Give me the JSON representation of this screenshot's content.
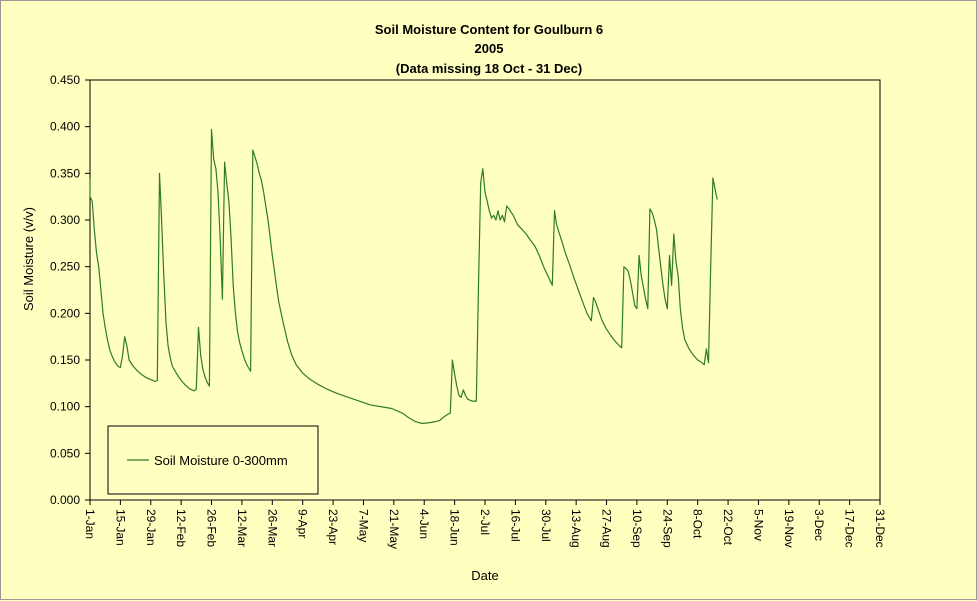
{
  "chart_data": {
    "type": "line",
    "title": "Soil Moisture Content for Goulburn 6",
    "subtitle": "2005",
    "note": "(Data missing 18 Oct - 31 Dec)",
    "xlabel": "Date",
    "ylabel": "Soil Moisture (v/v)",
    "ylim": [
      0,
      0.45
    ],
    "xlim_days": [
      0,
      364
    ],
    "x_tick_labels": [
      "1-Jan",
      "15-Jan",
      "29-Jan",
      "12-Feb",
      "26-Feb",
      "12-Mar",
      "26-Mar",
      "9-Apr",
      "23-Apr",
      "7-May",
      "21-May",
      "4-Jun",
      "18-Jun",
      "2-Jul",
      "16-Jul",
      "30-Jul",
      "13-Aug",
      "27-Aug",
      "10-Sep",
      "24-Sep",
      "8-Oct",
      "22-Oct",
      "5-Nov",
      "19-Nov",
      "3-Dec",
      "17-Dec",
      "31-Dec"
    ],
    "y_tick_labels": [
      "0.000",
      "0.050",
      "0.100",
      "0.150",
      "0.200",
      "0.250",
      "0.300",
      "0.350",
      "0.400",
      "0.450"
    ],
    "legend": {
      "position": "bottom-left",
      "label": "Soil Moisture 0-300mm"
    },
    "grid": false,
    "colors": {
      "background": "#ffffc0",
      "series": "#2e7d1e",
      "axis": "#000000"
    },
    "series": [
      {
        "name": "Soil Moisture 0-300mm",
        "points": [
          [
            "1-Jan",
            0.345
          ],
          [
            "1-Jan",
            0.325
          ],
          [
            "2-Jan",
            0.32
          ],
          [
            "3-Jan",
            0.29
          ],
          [
            "4-Jan",
            0.265
          ],
          [
            "5-Jan",
            0.25
          ],
          [
            "6-Jan",
            0.225
          ],
          [
            "7-Jan",
            0.2
          ],
          [
            "8-Jan",
            0.185
          ],
          [
            "9-Jan",
            0.172
          ],
          [
            "10-Jan",
            0.162
          ],
          [
            "11-Jan",
            0.155
          ],
          [
            "12-Jan",
            0.15
          ],
          [
            "13-Jan",
            0.146
          ],
          [
            "14-Jan",
            0.143
          ],
          [
            "15-Jan",
            0.142
          ],
          [
            "16-Jan",
            0.155
          ],
          [
            "17-Jan",
            0.175
          ],
          [
            "18-Jan",
            0.165
          ],
          [
            "19-Jan",
            0.15
          ],
          [
            "21-Jan",
            0.143
          ],
          [
            "23-Jan",
            0.138
          ],
          [
            "25-Jan",
            0.134
          ],
          [
            "27-Jan",
            0.131
          ],
          [
            "29-Jan",
            0.129
          ],
          [
            "31-Jan",
            0.127
          ],
          [
            "1-Feb",
            0.128
          ],
          [
            "2-Feb",
            0.35
          ],
          [
            "3-Feb",
            0.3
          ],
          [
            "4-Feb",
            0.24
          ],
          [
            "5-Feb",
            0.19
          ],
          [
            "6-Feb",
            0.165
          ],
          [
            "7-Feb",
            0.152
          ],
          [
            "8-Feb",
            0.143
          ],
          [
            "10-Feb",
            0.135
          ],
          [
            "12-Feb",
            0.128
          ],
          [
            "14-Feb",
            0.123
          ],
          [
            "16-Feb",
            0.119
          ],
          [
            "18-Feb",
            0.117
          ],
          [
            "19-Feb",
            0.119
          ],
          [
            "20-Feb",
            0.185
          ],
          [
            "21-Feb",
            0.155
          ],
          [
            "22-Feb",
            0.14
          ],
          [
            "23-Feb",
            0.132
          ],
          [
            "24-Feb",
            0.126
          ],
          [
            "25-Feb",
            0.122
          ],
          [
            "26-Feb",
            0.397
          ],
          [
            "27-Feb",
            0.365
          ],
          [
            "28-Feb",
            0.355
          ],
          [
            "1-Mar",
            0.33
          ],
          [
            "2-Mar",
            0.28
          ],
          [
            "3-Mar",
            0.215
          ],
          [
            "4-Mar",
            0.362
          ],
          [
            "5-Mar",
            0.34
          ],
          [
            "6-Mar",
            0.32
          ],
          [
            "7-Mar",
            0.28
          ],
          [
            "8-Mar",
            0.23
          ],
          [
            "9-Mar",
            0.2
          ],
          [
            "10-Mar",
            0.18
          ],
          [
            "11-Mar",
            0.168
          ],
          [
            "12-Mar",
            0.16
          ],
          [
            "13-Mar",
            0.152
          ],
          [
            "14-Mar",
            0.146
          ],
          [
            "15-Mar",
            0.142
          ],
          [
            "16-Mar",
            0.138
          ],
          [
            "17-Mar",
            0.375
          ],
          [
            "18-Mar",
            0.368
          ],
          [
            "19-Mar",
            0.36
          ],
          [
            "20-Mar",
            0.35
          ],
          [
            "21-Mar",
            0.342
          ],
          [
            "22-Mar",
            0.33
          ],
          [
            "23-Mar",
            0.315
          ],
          [
            "24-Mar",
            0.3
          ],
          [
            "25-Mar",
            0.282
          ],
          [
            "26-Mar",
            0.262
          ],
          [
            "27-Mar",
            0.245
          ],
          [
            "28-Mar",
            0.228
          ],
          [
            "29-Mar",
            0.212
          ],
          [
            "31-Mar",
            0.19
          ],
          [
            "2-Apr",
            0.17
          ],
          [
            "4-Apr",
            0.155
          ],
          [
            "6-Apr",
            0.145
          ],
          [
            "9-Apr",
            0.136
          ],
          [
            "12-Apr",
            0.13
          ],
          [
            "16-Apr",
            0.124
          ],
          [
            "20-Apr",
            0.119
          ],
          [
            "25-Apr",
            0.114
          ],
          [
            "30-Apr",
            0.11
          ],
          [
            "5-May",
            0.106
          ],
          [
            "10-May",
            0.102
          ],
          [
            "15-May",
            0.1
          ],
          [
            "20-May",
            0.098
          ],
          [
            "25-May",
            0.093
          ],
          [
            "28-May",
            0.088
          ],
          [
            "31-May",
            0.084
          ],
          [
            "3-Jun",
            0.082
          ],
          [
            "7-Jun",
            0.083
          ],
          [
            "11-Jun",
            0.085
          ],
          [
            "13-Jun",
            0.089
          ],
          [
            "15-Jun",
            0.092
          ],
          [
            "16-Jun",
            0.093
          ],
          [
            "17-Jun",
            0.15
          ],
          [
            "18-Jun",
            0.135
          ],
          [
            "19-Jun",
            0.122
          ],
          [
            "20-Jun",
            0.112
          ],
          [
            "21-Jun",
            0.11
          ],
          [
            "22-Jun",
            0.118
          ],
          [
            "23-Jun",
            0.112
          ],
          [
            "24-Jun",
            0.108
          ],
          [
            "26-Jun",
            0.106
          ],
          [
            "28-Jun",
            0.106
          ],
          [
            "29-Jun",
            0.23
          ],
          [
            "30-Jun",
            0.34
          ],
          [
            "1-Jul",
            0.355
          ],
          [
            "2-Jul",
            0.33
          ],
          [
            "3-Jul",
            0.32
          ],
          [
            "4-Jul",
            0.31
          ],
          [
            "5-Jul",
            0.302
          ],
          [
            "6-Jul",
            0.305
          ],
          [
            "7-Jul",
            0.3
          ],
          [
            "8-Jul",
            0.31
          ],
          [
            "9-Jul",
            0.3
          ],
          [
            "10-Jul",
            0.305
          ],
          [
            "11-Jul",
            0.298
          ],
          [
            "12-Jul",
            0.315
          ],
          [
            "13-Jul",
            0.312
          ],
          [
            "15-Jul",
            0.305
          ],
          [
            "17-Jul",
            0.295
          ],
          [
            "19-Jul",
            0.29
          ],
          [
            "21-Jul",
            0.285
          ],
          [
            "23-Jul",
            0.278
          ],
          [
            "25-Jul",
            0.272
          ],
          [
            "27-Jul",
            0.262
          ],
          [
            "29-Jul",
            0.25
          ],
          [
            "31-Jul",
            0.24
          ],
          [
            "2-Aug",
            0.23
          ],
          [
            "3-Aug",
            0.31
          ],
          [
            "4-Aug",
            0.295
          ],
          [
            "6-Aug",
            0.28
          ],
          [
            "8-Aug",
            0.265
          ],
          [
            "10-Aug",
            0.252
          ],
          [
            "12-Aug",
            0.238
          ],
          [
            "14-Aug",
            0.225
          ],
          [
            "16-Aug",
            0.212
          ],
          [
            "18-Aug",
            0.2
          ],
          [
            "20-Aug",
            0.192
          ],
          [
            "21-Aug",
            0.217
          ],
          [
            "22-Aug",
            0.212
          ],
          [
            "23-Aug",
            0.205
          ],
          [
            "25-Aug",
            0.192
          ],
          [
            "27-Aug",
            0.183
          ],
          [
            "29-Aug",
            0.176
          ],
          [
            "31-Aug",
            0.17
          ],
          [
            "2-Sep",
            0.165
          ],
          [
            "3-Sep",
            0.163
          ],
          [
            "4-Sep",
            0.25
          ],
          [
            "5-Sep",
            0.248
          ],
          [
            "6-Sep",
            0.245
          ],
          [
            "7-Sep",
            0.235
          ],
          [
            "8-Sep",
            0.222
          ],
          [
            "9-Sep",
            0.208
          ],
          [
            "10-Sep",
            0.205
          ],
          [
            "11-Sep",
            0.262
          ],
          [
            "12-Sep",
            0.24
          ],
          [
            "13-Sep",
            0.228
          ],
          [
            "14-Sep",
            0.215
          ],
          [
            "15-Sep",
            0.205
          ],
          [
            "16-Sep",
            0.312
          ],
          [
            "17-Sep",
            0.308
          ],
          [
            "18-Sep",
            0.3
          ],
          [
            "19-Sep",
            0.29
          ],
          [
            "20-Sep",
            0.27
          ],
          [
            "21-Sep",
            0.25
          ],
          [
            "22-Sep",
            0.23
          ],
          [
            "23-Sep",
            0.215
          ],
          [
            "24-Sep",
            0.205
          ],
          [
            "25-Sep",
            0.262
          ],
          [
            "26-Sep",
            0.23
          ],
          [
            "27-Sep",
            0.285
          ],
          [
            "28-Sep",
            0.255
          ],
          [
            "29-Sep",
            0.24
          ],
          [
            "30-Sep",
            0.205
          ],
          [
            "1-Oct",
            0.185
          ],
          [
            "2-Oct",
            0.172
          ],
          [
            "4-Oct",
            0.162
          ],
          [
            "6-Oct",
            0.155
          ],
          [
            "8-Oct",
            0.15
          ],
          [
            "10-Oct",
            0.147
          ],
          [
            "11-Oct",
            0.145
          ],
          [
            "12-Oct",
            0.162
          ],
          [
            "13-Oct",
            0.147
          ],
          [
            "14-Oct",
            0.25
          ],
          [
            "15-Oct",
            0.345
          ],
          [
            "16-Oct",
            0.333
          ],
          [
            "17-Oct",
            0.322
          ]
        ]
      }
    ]
  }
}
